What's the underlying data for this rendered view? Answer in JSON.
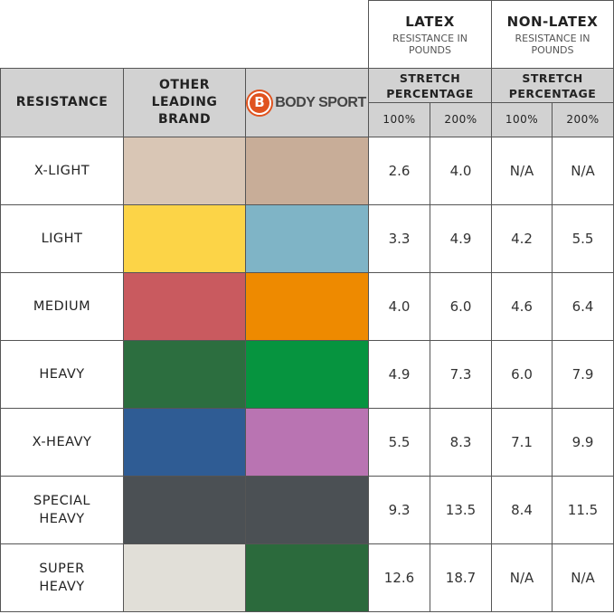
{
  "header": {
    "latex": {
      "title": "LATEX",
      "subtitle": "RESISTANCE IN POUNDS"
    },
    "non_latex": {
      "title": "NON-LATEX",
      "subtitle": "RESISTANCE IN POUNDS"
    },
    "resistance": "RESISTANCE",
    "other_brand": "OTHER LEADING BRAND",
    "bodysport": {
      "logo_letter": "B",
      "name": "BODY SPORT"
    },
    "stretch": "STRETCH PERCENTAGE",
    "pct100": "100%",
    "pct200": "200%"
  },
  "rows": [
    {
      "label": "X-LIGHT",
      "other_color": "#d9c6b5",
      "bodysport_color": "#c8ad98",
      "latex100": "2.6",
      "latex200": "4.0",
      "nonlatex100": "N/A",
      "nonlatex200": "N/A"
    },
    {
      "label": "LIGHT",
      "other_color": "#fcd447",
      "bodysport_color": "#7fb4c6",
      "latex100": "3.3",
      "latex200": "4.9",
      "nonlatex100": "4.2",
      "nonlatex200": "5.5"
    },
    {
      "label": "MEDIUM",
      "other_color": "#c95a5f",
      "bodysport_color": "#ee8a00",
      "latex100": "4.0",
      "latex200": "6.0",
      "nonlatex100": "4.6",
      "nonlatex200": "6.4"
    },
    {
      "label": "HEAVY",
      "other_color": "#2c6e3f",
      "bodysport_color": "#06943f",
      "latex100": "4.9",
      "latex200": "7.3",
      "nonlatex100": "6.0",
      "nonlatex200": "7.9"
    },
    {
      "label": "X-HEAVY",
      "other_color": "#2f5c94",
      "bodysport_color": "#b974b2",
      "latex100": "5.5",
      "latex200": "8.3",
      "nonlatex100": "7.1",
      "nonlatex200": "9.9"
    },
    {
      "label": "SPECIAL HEAVY",
      "other_color": "#4b5054",
      "bodysport_color": "#4b5054",
      "latex100": "9.3",
      "latex200": "13.5",
      "nonlatex100": "8.4",
      "nonlatex200": "11.5"
    },
    {
      "label": "SUPER HEAVY",
      "other_color": "#e1dfd8",
      "bodysport_color": "#2b6a3c",
      "latex100": "12.6",
      "latex200": "18.7",
      "nonlatex100": "N/A",
      "nonlatex200": "N/A"
    }
  ]
}
